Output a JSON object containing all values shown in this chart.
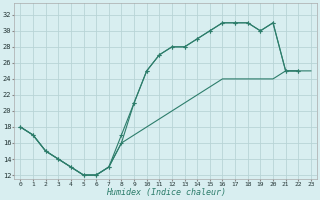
{
  "bg_color": "#d8eef0",
  "grid_color": "#b8d4d6",
  "line_color": "#2d7d6b",
  "xlabel": "Humidex (Indice chaleur)",
  "xlim": [
    -0.5,
    23.5
  ],
  "ylim": [
    11.5,
    33.5
  ],
  "xticks": [
    0,
    1,
    2,
    3,
    4,
    5,
    6,
    7,
    8,
    9,
    10,
    11,
    12,
    13,
    14,
    15,
    16,
    17,
    18,
    19,
    20,
    21,
    22,
    23
  ],
  "yticks": [
    12,
    14,
    16,
    18,
    20,
    22,
    24,
    26,
    28,
    30,
    32
  ],
  "curve1_x": [
    0,
    1,
    2,
    3,
    4,
    5,
    6,
    7,
    8,
    9,
    10,
    11,
    12,
    13,
    14,
    15,
    16,
    17,
    18,
    19,
    20,
    21,
    22
  ],
  "curve1_y": [
    18,
    17,
    15,
    14,
    13,
    12,
    12,
    13,
    17,
    21,
    25,
    27,
    28,
    28,
    29,
    30,
    31,
    31,
    31,
    30,
    31,
    25,
    25
  ],
  "curve2_x": [
    0,
    1,
    2,
    3,
    4,
    5,
    6,
    7,
    8,
    9,
    10,
    11,
    12,
    13,
    14,
    15,
    16,
    17,
    18,
    19,
    20,
    21,
    22
  ],
  "curve2_y": [
    18,
    17,
    15,
    14,
    13,
    12,
    12,
    13,
    16,
    21,
    25,
    27,
    28,
    28,
    29,
    30,
    31,
    31,
    31,
    30,
    31,
    25,
    25
  ],
  "line3_x": [
    0,
    1,
    2,
    3,
    4,
    5,
    6,
    7,
    8,
    9,
    10,
    11,
    12,
    13,
    14,
    15,
    16,
    17,
    18,
    19,
    20,
    21,
    22,
    23
  ],
  "line3_y": [
    18,
    17,
    15,
    14,
    13,
    12,
    12,
    13,
    16,
    17,
    18,
    19,
    20,
    21,
    22,
    23,
    24,
    24,
    24,
    24,
    24,
    25,
    25,
    25
  ]
}
